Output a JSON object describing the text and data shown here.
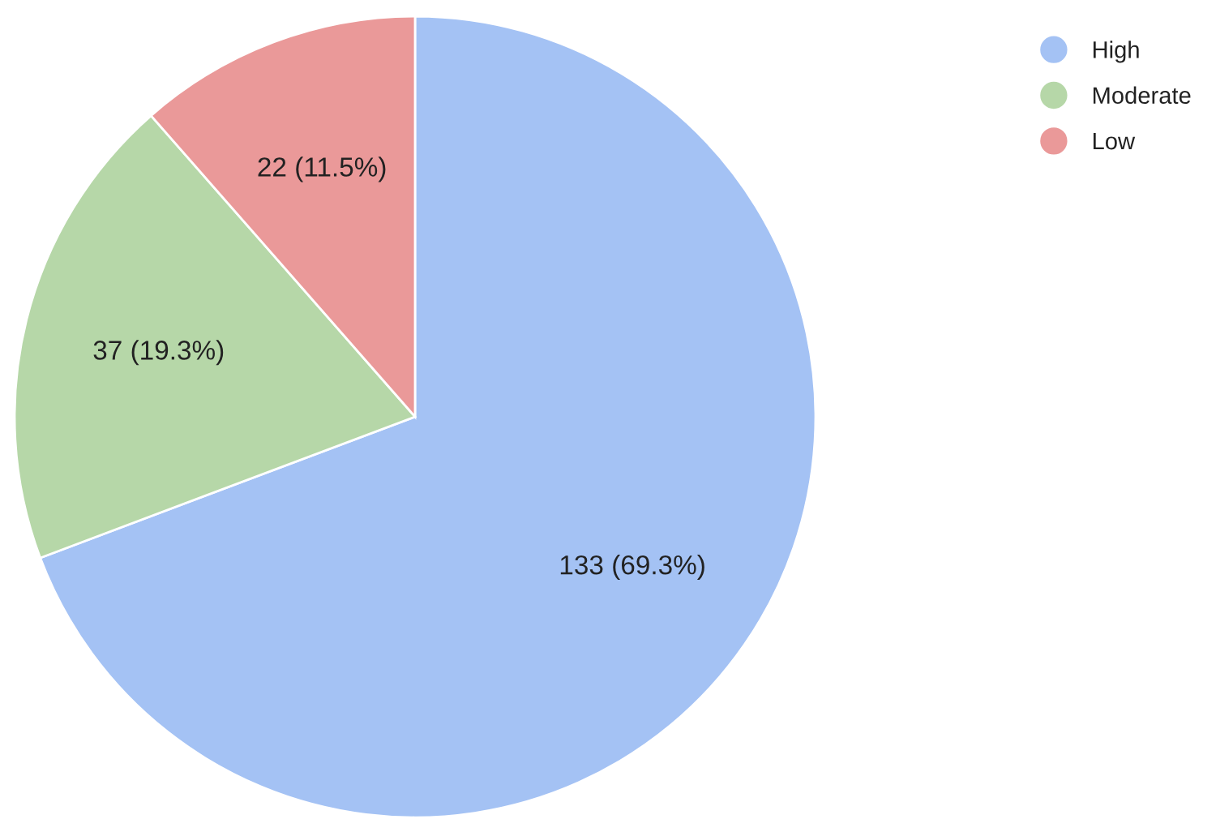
{
  "chart_data": {
    "type": "pie",
    "categories": [
      "High",
      "Moderate",
      "Low"
    ],
    "values": [
      133,
      37,
      22
    ],
    "colors": [
      "#a4c2f4",
      "#b6d7a8",
      "#ea9999"
    ],
    "value_labels": [
      "133 (69.3%)",
      "37 (19.3%)",
      "22 (11.5%)"
    ],
    "legend": "top right"
  }
}
